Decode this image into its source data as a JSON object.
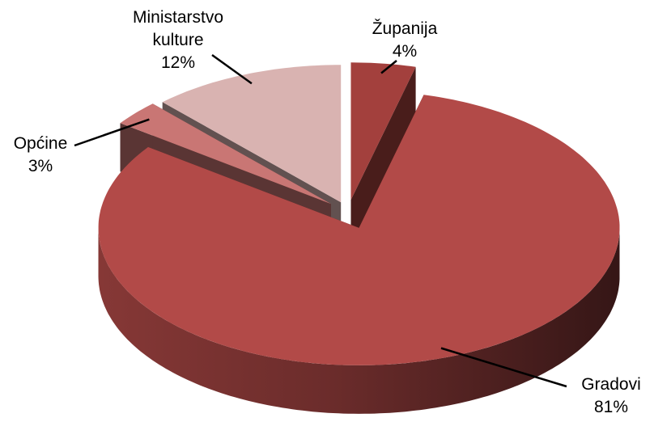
{
  "chart_data": {
    "type": "pie",
    "three_d": true,
    "exploded": true,
    "categories": [
      "Županija",
      "Gradovi",
      "Općine",
      "Ministarstvo kulture"
    ],
    "values": [
      4,
      81,
      3,
      12
    ],
    "value_labels": [
      "4%",
      "81%",
      "3%",
      "12%"
    ],
    "colors": [
      "#a3403d",
      "#b24a48",
      "#c97674",
      "#d9b3b1"
    ]
  }
}
